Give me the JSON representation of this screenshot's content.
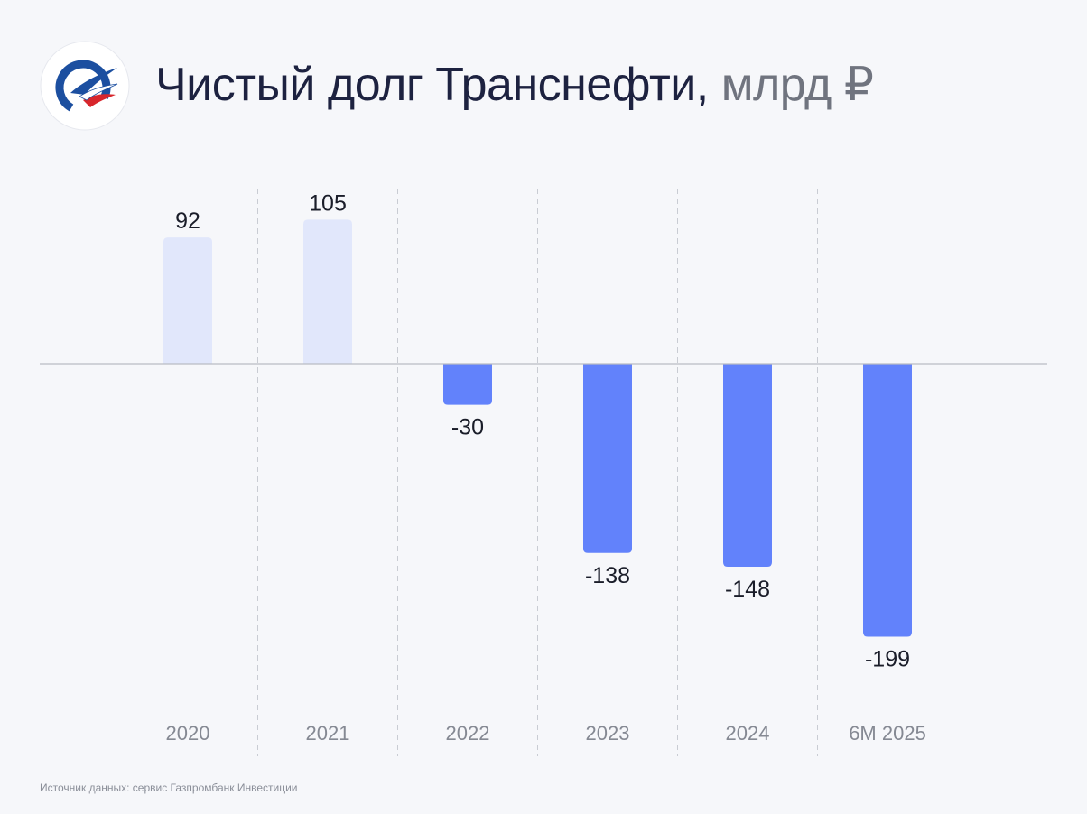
{
  "header": {
    "title": "Чистый долг Транснефти,",
    "unit": "млрд ₽"
  },
  "logo": {
    "icon": "transneft-logo"
  },
  "colors": {
    "positive_bar": "#e1e7fb",
    "negative_bar": "#6282fb",
    "baseline": "#b9bcc4",
    "separator": "#c9ccd3",
    "value_label": "#1a1d29",
    "tick_label": "#858993"
  },
  "chart_data": {
    "type": "bar",
    "categories": [
      "2020",
      "2021",
      "2022",
      "2023",
      "2024",
      "6M 2025"
    ],
    "values": [
      92,
      105,
      -30,
      -138,
      -148,
      -199
    ],
    "data_labels": [
      "92",
      "105",
      "-30",
      "-138",
      "-148",
      "-199"
    ],
    "title": "Чистый долг Транснефти, млрд ₽",
    "xlabel": "",
    "ylabel": "",
    "grid": false,
    "legend": "none"
  },
  "footer": {
    "source": "Источник данных: сервис Газпромбанк Инвестиции"
  }
}
